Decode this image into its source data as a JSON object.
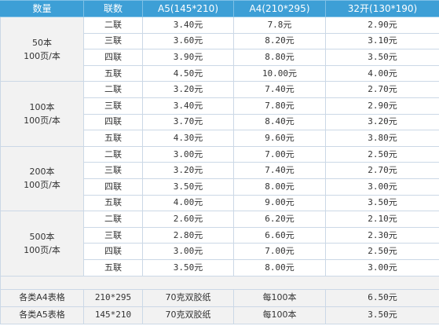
{
  "header": [
    "数量",
    "联数",
    "A5(145*210)",
    "A4(210*295)",
    "32开(130*190)"
  ],
  "groups": [
    {
      "qty_line1": "50本",
      "qty_line2": "100页/本",
      "rows": [
        {
          "copies": "二联",
          "a5": "3.40元",
          "a4": "7.8元",
          "k32": "2.90元"
        },
        {
          "copies": "三联",
          "a5": "3.60元",
          "a4": "8.20元",
          "k32": "3.10元"
        },
        {
          "copies": "四联",
          "a5": "3.90元",
          "a4": "8.80元",
          "k32": "3.50元"
        },
        {
          "copies": "五联",
          "a5": "4.50元",
          "a4": "10.00元",
          "k32": "4.00元"
        }
      ]
    },
    {
      "qty_line1": "100本",
      "qty_line2": "100页/本",
      "rows": [
        {
          "copies": "二联",
          "a5": "3.20元",
          "a4": "7.40元",
          "k32": "2.70元"
        },
        {
          "copies": "三联",
          "a5": "3.40元",
          "a4": "7.80元",
          "k32": "2.90元"
        },
        {
          "copies": "四联",
          "a5": "3.70元",
          "a4": "8.40元",
          "k32": "3.20元"
        },
        {
          "copies": "五联",
          "a5": "4.30元",
          "a4": "9.60元",
          "k32": "3.80元"
        }
      ]
    },
    {
      "qty_line1": "200本",
      "qty_line2": "100页/本",
      "rows": [
        {
          "copies": "二联",
          "a5": "3.00元",
          "a4": "7.00元",
          "k32": "2.50元"
        },
        {
          "copies": "三联",
          "a5": "3.20元",
          "a4": "7.40元",
          "k32": "2.70元"
        },
        {
          "copies": "四联",
          "a5": "3.50元",
          "a4": "8.00元",
          "k32": "3.00元"
        },
        {
          "copies": "五联",
          "a5": "4.00元",
          "a4": "9.00元",
          "k32": "3.50元"
        }
      ]
    },
    {
      "qty_line1": "500本",
      "qty_line2": "100页/本",
      "rows": [
        {
          "copies": "二联",
          "a5": "2.60元",
          "a4": "6.20元",
          "k32": "2.10元"
        },
        {
          "copies": "三联",
          "a5": "2.80元",
          "a4": "6.60元",
          "k32": "2.30元"
        },
        {
          "copies": "四联",
          "a5": "3.00元",
          "a4": "7.00元",
          "k32": "2.50元"
        },
        {
          "copies": "五联",
          "a5": "3.50元",
          "a4": "8.00元",
          "k32": "3.00元"
        }
      ]
    }
  ],
  "forms": [
    {
      "name": "各类A4表格",
      "size": "210*295",
      "paper": "70克双胶纸",
      "unit": "每100本",
      "price": "6.50元"
    },
    {
      "name": "各类A5表格",
      "size": "145*210",
      "paper": "70克双胶纸",
      "unit": "每100本",
      "price": "3.50元"
    }
  ],
  "colors": {
    "header_bg": "#3d9fd6",
    "border": "#cbd8e6",
    "qty_bg": "#f2f2f2"
  }
}
